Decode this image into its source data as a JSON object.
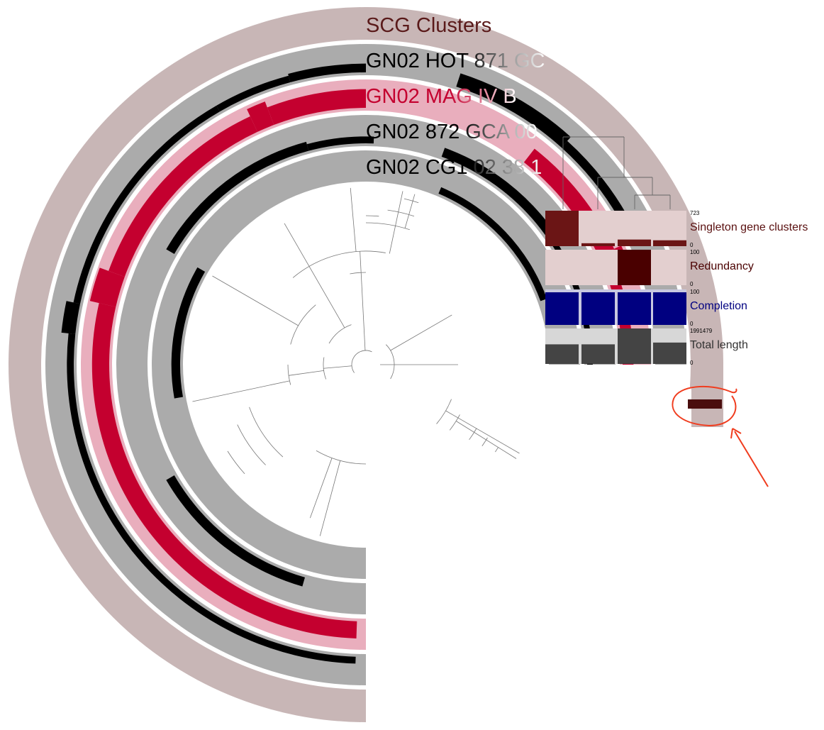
{
  "layers": [
    {
      "key": "scg",
      "label": "SCG Clusters",
      "color": "#5a1a1a",
      "background": "#c8b6b6",
      "fade_to": "#5a1a1a"
    },
    {
      "key": "hot871",
      "label": "GN02 HOT 871 GC",
      "color": "#000000",
      "background": "#ababab",
      "fade_to": "#ffffff"
    },
    {
      "key": "mag",
      "label": "GN02 MAG IV B",
      "color": "#c4002f",
      "background": "#e9aebd",
      "fade_to": "#ffffff"
    },
    {
      "key": "g872",
      "label": "GN02 872 GCA 00",
      "color": "#000000",
      "background": "#ababab",
      "fade_to": "#ffffff"
    },
    {
      "key": "cg1",
      "label": "GN02 CG1 02 38 1",
      "color": "#000000",
      "background": "#ababab",
      "fade_to": "#ffffff"
    }
  ],
  "bar_layers": [
    {
      "key": "singleton",
      "title": "Singleton gene clusters",
      "max": "723",
      "min": "0",
      "values": [
        723,
        60,
        135,
        120
      ],
      "max_value": 723,
      "bar_color": "#6b1515",
      "bg_color": "#e3cfcf",
      "title_color": "#5a1010"
    },
    {
      "key": "redundancy",
      "title": "Redundancy",
      "max": "100",
      "min": "0",
      "values": [
        0,
        0,
        100,
        0
      ],
      "max_value": 100,
      "bar_color": "#4a0000",
      "bg_color": "#e3cfcf",
      "title_color": "#4a0000"
    },
    {
      "key": "completion",
      "title": "Completion",
      "max": "100",
      "min": "0",
      "values": [
        92,
        92,
        92,
        92
      ],
      "max_value": 100,
      "bar_color": "#000080",
      "bg_color": "#c8c8e0",
      "title_color": "#000080"
    },
    {
      "key": "length",
      "title": "Total length",
      "max": "1991479",
      "min": "0",
      "values": [
        1100000,
        1100000,
        1991479,
        1200000
      ],
      "max_value": 1991479,
      "bar_color": "#444444",
      "bg_color": "#d7d7d7",
      "title_color": "#333333"
    }
  ],
  "annotation": {
    "color": "#f03c1e"
  }
}
